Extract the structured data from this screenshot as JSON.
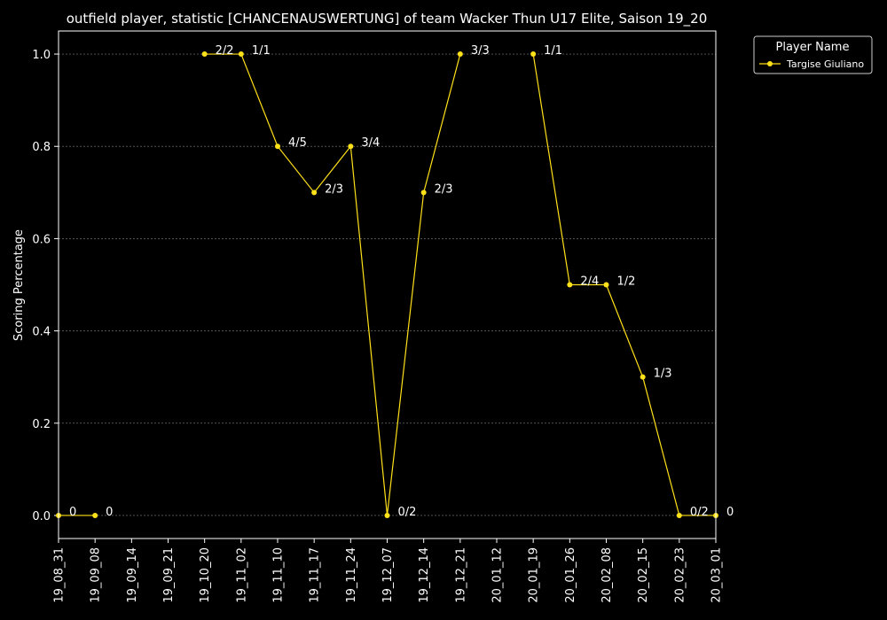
{
  "colors": {
    "background": "#000000",
    "foreground": "#ffffff",
    "series": "#ffe119",
    "grid": "#808080"
  },
  "chart_data": {
    "type": "line",
    "title": "outfield player, statistic [CHANCENAUSWERTUNG] of team Wacker Thun U17 Elite, Saison 19_20",
    "ylabel": "Scoring Percentage",
    "xlabel": "",
    "ylim": [
      -0.05,
      1.05
    ],
    "yticks": [
      0.0,
      0.2,
      0.4,
      0.6,
      0.8,
      1.0
    ],
    "ytick_labels": [
      "0.0",
      "0.2",
      "0.4",
      "0.6",
      "0.8",
      "1.0"
    ],
    "grid": "horizontal dashed",
    "categories": [
      "19_08_31",
      "19_09_08",
      "19_09_14",
      "19_09_21",
      "19_10_20",
      "19_11_02",
      "19_11_10",
      "19_11_17",
      "19_11_24",
      "19_12_07",
      "19_12_14",
      "19_12_21",
      "20_01_12",
      "20_01_19",
      "20_01_26",
      "20_02_08",
      "20_02_15",
      "20_02_23",
      "20_03_01"
    ],
    "legend": {
      "title": "Player Name",
      "placement": "outside top-right"
    },
    "series": [
      {
        "name": "Targise Giuliano",
        "values": [
          0.0,
          0.0,
          null,
          null,
          1.0,
          1.0,
          0.8,
          0.7,
          0.8,
          0.0,
          0.7,
          1.0,
          null,
          1.0,
          0.5,
          0.5,
          0.3,
          0.0,
          0.0
        ],
        "labels": [
          "0",
          "0",
          "",
          "",
          "2/2",
          "1/1",
          "4/5",
          "2/3",
          "3/4",
          "0/2",
          "2/3",
          "3/3",
          "",
          "1/1",
          "2/4",
          "1/2",
          "1/3",
          "0/2",
          "0"
        ]
      }
    ]
  }
}
